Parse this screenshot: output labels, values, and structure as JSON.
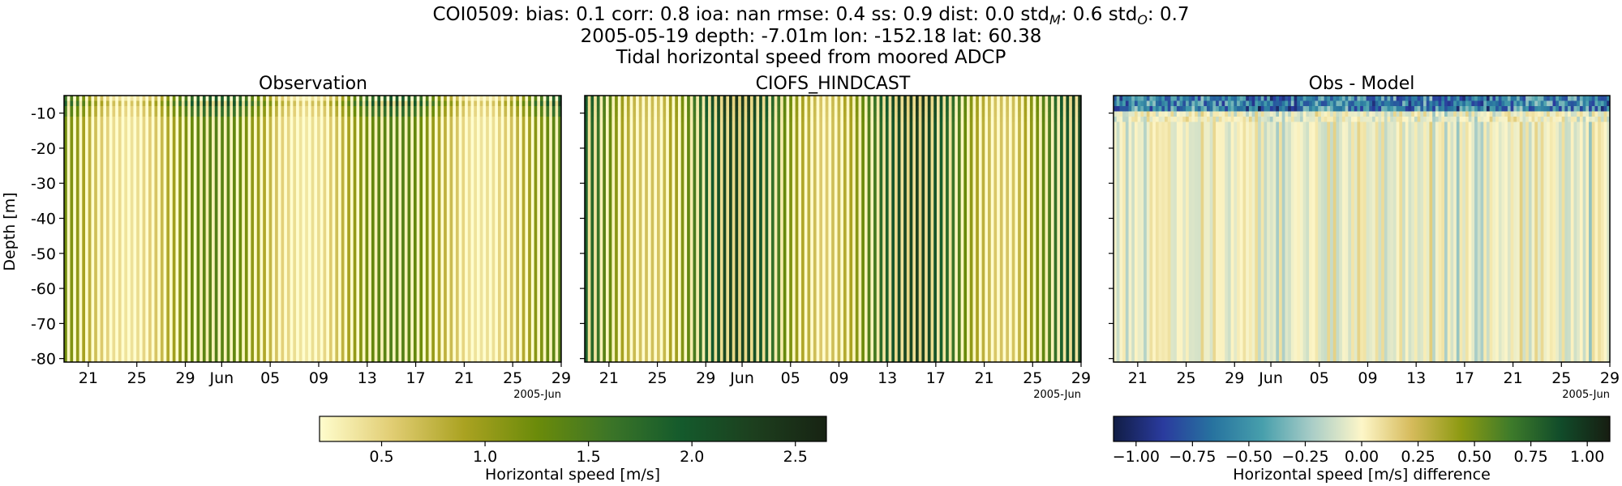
{
  "header": {
    "line1_prefix": "COI0509: bias: 0.1  corr: 0.8  ioa: nan  rmse: 0.4  ss: 0.9  dist: 0.0  std",
    "line1_sub1": "M",
    "line1_mid": ": 0.6  std",
    "line1_sub2": "O",
    "line1_suffix": ": 0.7",
    "line2": "2005-05-19 depth: -7.01m lon: -152.18 lat: 60.38",
    "line3": "Tidal horizontal speed from moored ADCP"
  },
  "chart_data": [
    {
      "type": "heatmap",
      "title": "Observation",
      "ylabel": "Depth [m]",
      "xlabel": "",
      "x_tick_labels": [
        "21",
        "25",
        "29",
        "Jun",
        "05",
        "09",
        "13",
        "17",
        "21",
        "25",
        "29"
      ],
      "x_offset_label": "2005-Jun",
      "x_range": [
        "2005-05-19",
        "2005-06-29"
      ],
      "y_tick_labels": [
        "-10",
        "-20",
        "-30",
        "-40",
        "-50",
        "-60",
        "-70",
        "-80"
      ],
      "y_range": [
        -81,
        -5
      ],
      "value_range": [
        0.2,
        2.6
      ],
      "colormap": "speed",
      "colorbar_label": "Horizontal speed [m/s]",
      "colorbar_ticks": [
        "0.5",
        "1.0",
        "1.5",
        "2.0",
        "2.5"
      ],
      "colorbar_ticks_values": [
        0.5,
        1.0,
        1.5,
        2.0,
        2.5
      ],
      "colorbar_range": [
        0.2,
        2.65
      ]
    },
    {
      "type": "heatmap",
      "title": "CIOFS_HINDCAST",
      "ylabel": "",
      "xlabel": "",
      "x_tick_labels": [
        "21",
        "25",
        "29",
        "Jun",
        "05",
        "09",
        "13",
        "17",
        "21",
        "25",
        "29"
      ],
      "x_offset_label": "2005-Jun",
      "x_range": [
        "2005-05-19",
        "2005-06-29"
      ],
      "y_range": [
        -81,
        -5
      ],
      "value_range": [
        0.2,
        2.6
      ],
      "colormap": "speed"
    },
    {
      "type": "heatmap",
      "title": "Obs - Model",
      "ylabel": "",
      "xlabel": "",
      "x_tick_labels": [
        "21",
        "25",
        "29",
        "Jun",
        "05",
        "09",
        "13",
        "17",
        "21",
        "25",
        "29"
      ],
      "x_offset_label": "2005-Jun",
      "x_range": [
        "2005-05-19",
        "2005-06-29"
      ],
      "y_range": [
        -81,
        -5
      ],
      "value_range": [
        -1.05,
        1.05
      ],
      "colormap": "delta",
      "colorbar_label": "Horizontal speed [m/s] difference",
      "colorbar_ticks": [
        "−1.00",
        "−0.75",
        "−0.50",
        "−0.25",
        "0.00",
        "0.25",
        "0.50",
        "0.75",
        "1.00"
      ],
      "colorbar_ticks_values": [
        -1.0,
        -0.75,
        -0.5,
        -0.25,
        0.0,
        0.25,
        0.5,
        0.75,
        1.0
      ],
      "colorbar_range": [
        -1.1,
        1.1
      ]
    }
  ],
  "colors": {
    "speed_cmap": [
      "#fffdcd",
      "#e1cd73",
      "#aaa221",
      "#6b8b0a",
      "#3c7527",
      "#145a2c",
      "#1d3f1e",
      "#172313"
    ],
    "delta_cmap": [
      "#111d45",
      "#2a3b9e",
      "#27739f",
      "#479fac",
      "#a9cdc7",
      "#fdf6c8",
      "#d6bb5c",
      "#8d9a12",
      "#3e7b2a",
      "#114c2a",
      "#171d11"
    ]
  }
}
